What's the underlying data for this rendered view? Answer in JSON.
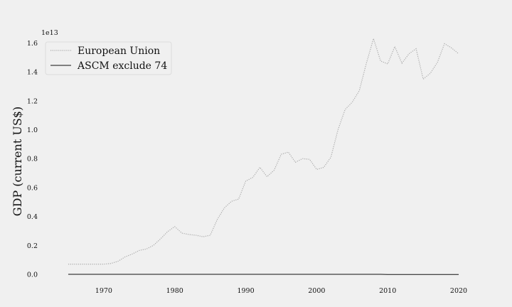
{
  "chart_data": {
    "type": "line",
    "title": "",
    "xlabel": "",
    "ylabel": "GDP (current US$)",
    "y_offset_label": "1e13",
    "xlim": [
      1963.5,
      2021.5
    ],
    "ylim": [
      0,
      1.72
    ],
    "x_ticks": [
      1970,
      1980,
      1990,
      2000,
      2010,
      2020
    ],
    "y_ticks": [
      0.0,
      0.2,
      0.4,
      0.6,
      0.8,
      1.0,
      1.2,
      1.4,
      1.6
    ],
    "y_tick_labels": [
      "0.0",
      "0.2",
      "0.4",
      "0.6",
      "0.8",
      "1.0",
      "1.2",
      "1.4",
      "1.6"
    ],
    "grid": false,
    "legend_position": "top-left",
    "x": [
      1965,
      1966,
      1967,
      1968,
      1969,
      1970,
      1971,
      1972,
      1973,
      1974,
      1975,
      1976,
      1977,
      1978,
      1979,
      1980,
      1981,
      1982,
      1983,
      1984,
      1985,
      1986,
      1987,
      1988,
      1989,
      1990,
      1991,
      1992,
      1993,
      1994,
      1995,
      1996,
      1997,
      1998,
      1999,
      2000,
      2001,
      2002,
      2003,
      2004,
      2005,
      2006,
      2007,
      2008,
      2009,
      2010,
      2011,
      2012,
      2013,
      2014,
      2015,
      2016,
      2017,
      2018,
      2019,
      2020
    ],
    "series": [
      {
        "name": "European Union",
        "color": "#a9a9a9",
        "style": "dotted",
        "values": [
          0.07,
          0.07,
          0.07,
          0.07,
          0.07,
          0.07,
          0.075,
          0.09,
          0.12,
          0.14,
          0.165,
          0.175,
          0.2,
          0.245,
          0.295,
          0.33,
          0.285,
          0.275,
          0.27,
          0.26,
          0.27,
          0.38,
          0.46,
          0.505,
          0.52,
          0.645,
          0.67,
          0.74,
          0.675,
          0.72,
          0.83,
          0.845,
          0.775,
          0.8,
          0.795,
          0.725,
          0.74,
          0.81,
          1.0,
          1.14,
          1.19,
          1.27,
          1.46,
          1.63,
          1.475,
          1.455,
          1.575,
          1.46,
          1.525,
          1.56,
          1.35,
          1.39,
          1.465,
          1.595,
          1.565,
          1.525
        ]
      },
      {
        "name": "ASCM exclude 74",
        "color": "#111111",
        "style": "solid",
        "values": [
          0.0,
          0.0,
          0.0,
          0.0,
          0.0,
          0.0,
          0.0,
          0.0,
          0.0,
          0.0,
          0.0,
          0.0,
          0.0,
          0.0,
          0.0,
          0.0,
          0.0,
          0.0,
          0.0,
          0.0,
          0.0,
          0.0,
          0.0,
          0.0,
          0.0,
          0.0,
          0.0,
          0.0,
          0.0,
          0.0,
          0.0,
          0.0,
          0.0,
          0.0,
          0.0,
          0.0,
          0.0,
          0.0,
          0.0,
          0.0,
          0.0,
          0.0,
          0.0,
          0.0,
          0.0,
          -0.001,
          -0.001,
          -0.001,
          -0.001,
          -0.001,
          -0.001,
          -0.001,
          -0.001,
          -0.001,
          -0.001,
          -0.001
        ]
      }
    ]
  }
}
